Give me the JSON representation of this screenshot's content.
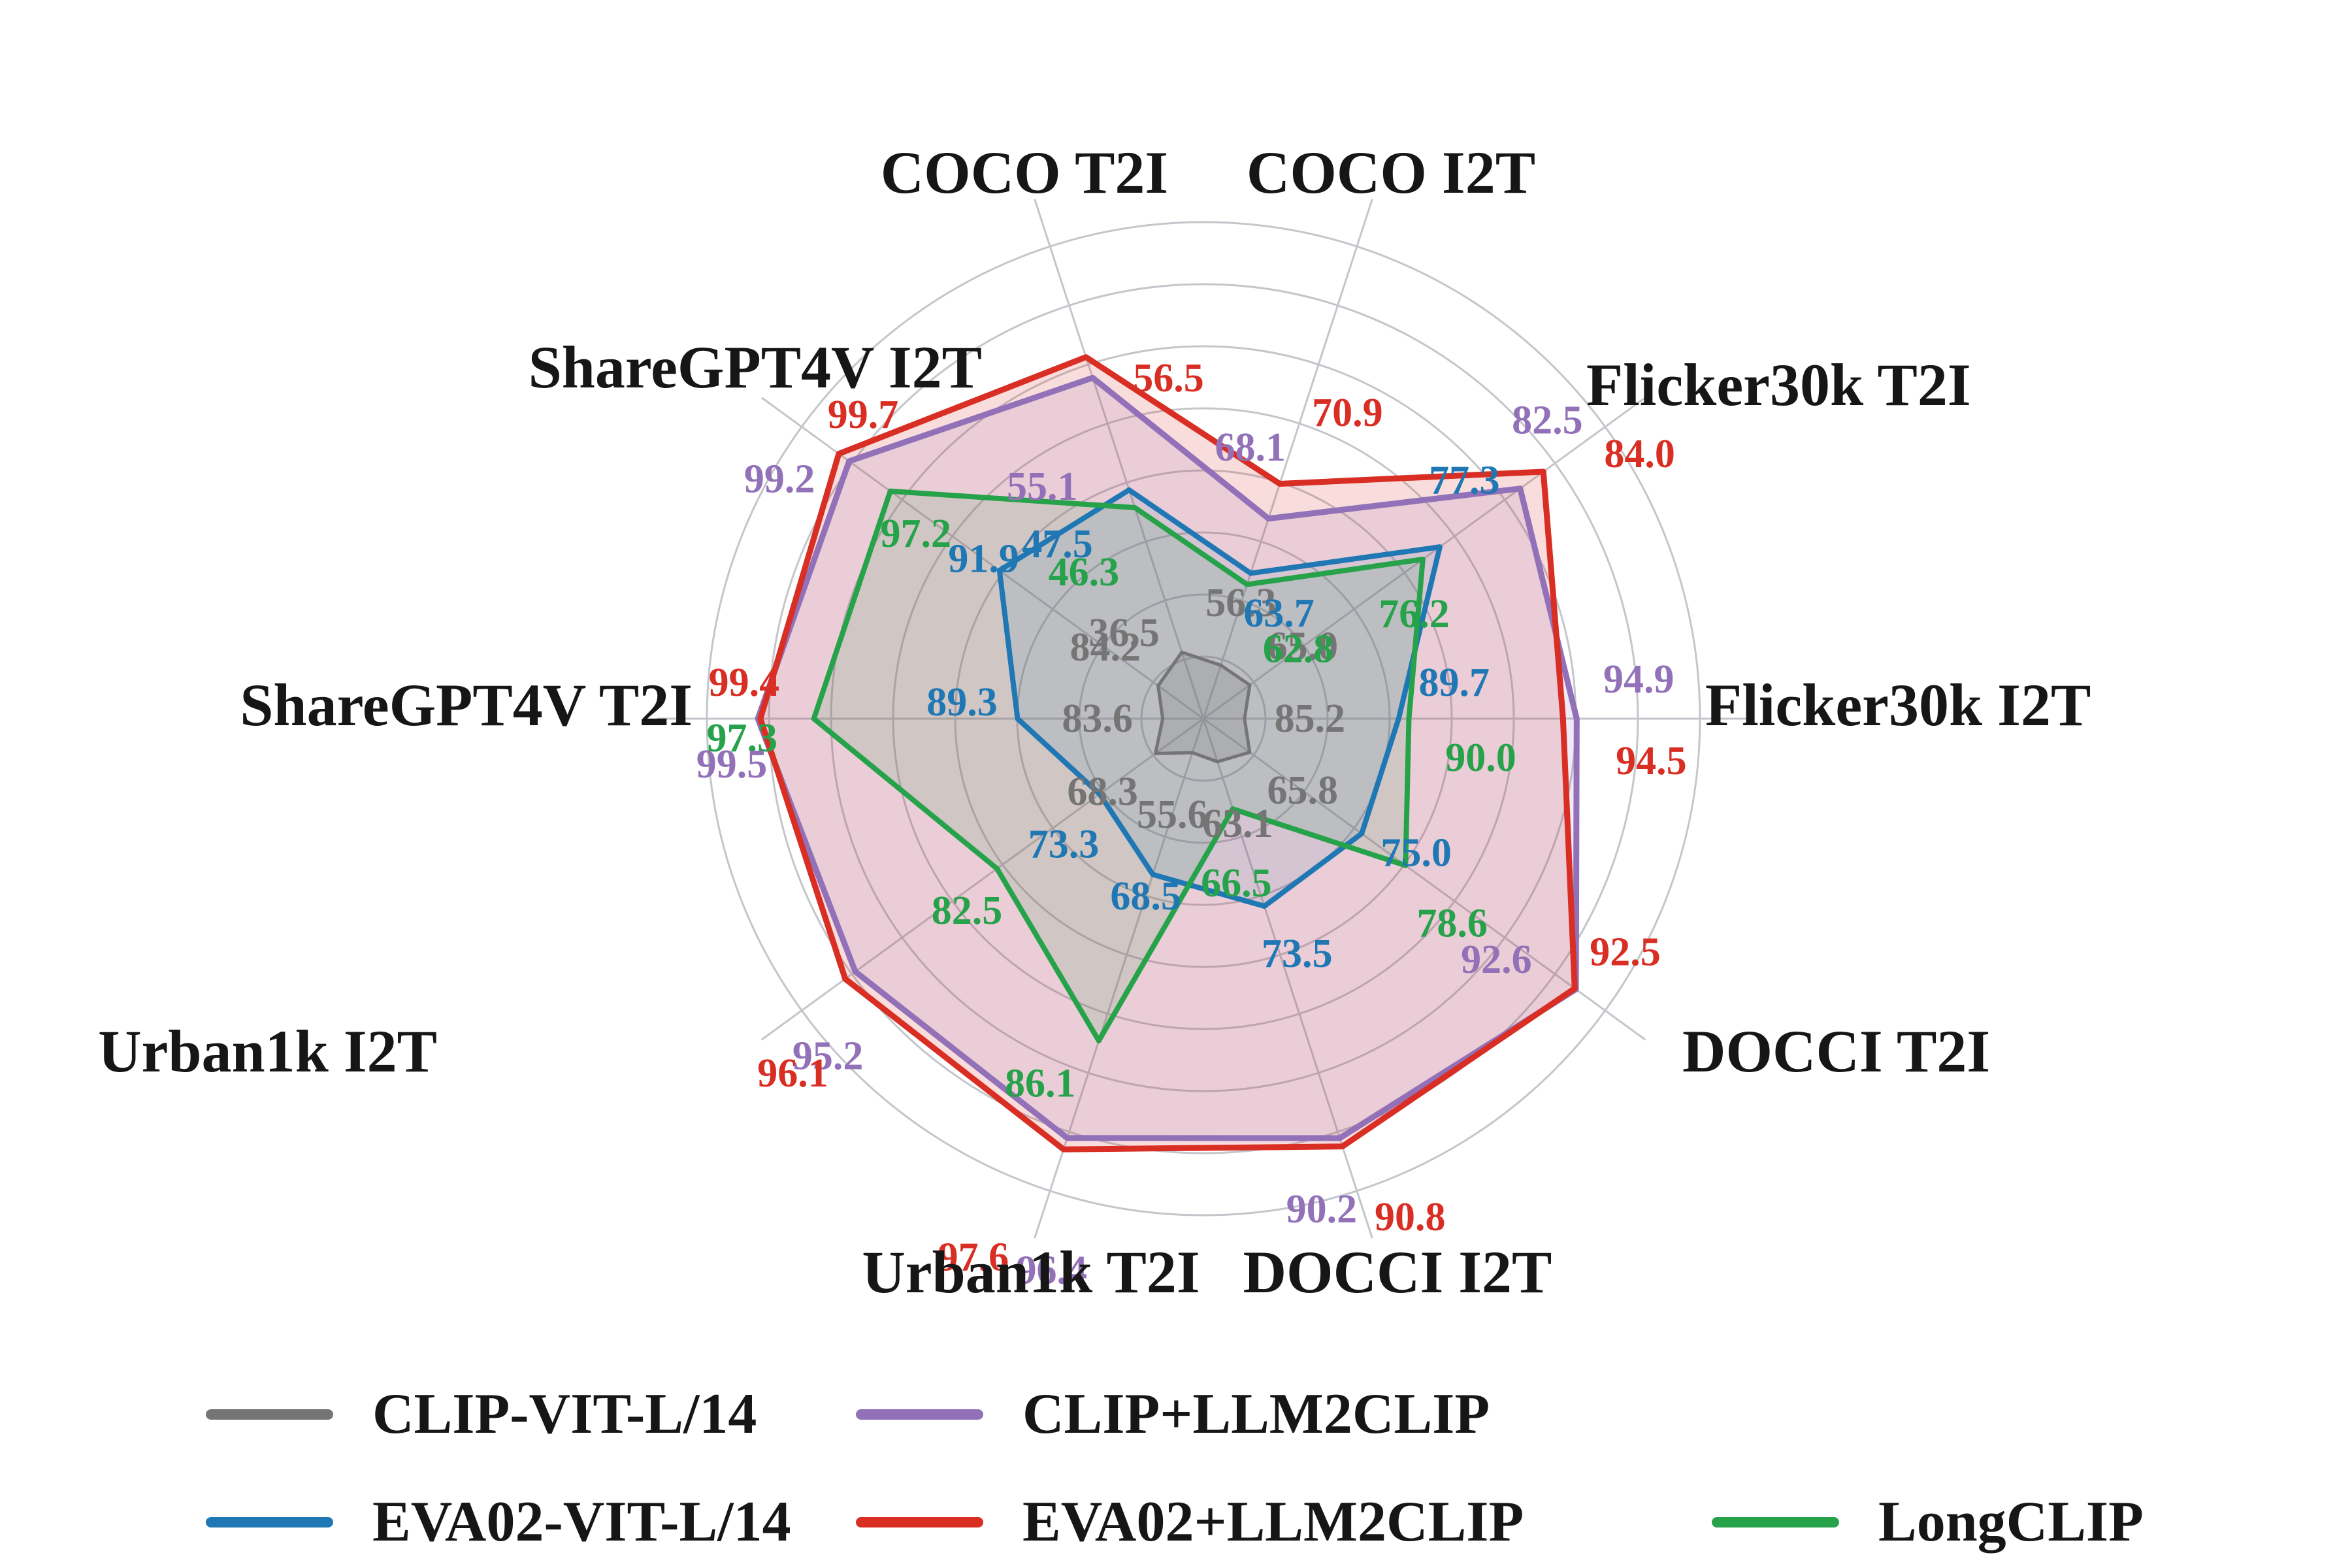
{
  "chart_data": {
    "type": "radar",
    "title": "",
    "grid": true,
    "grid_rings": 8,
    "grid_color": "#c3c6cb",
    "legend_position": "bottom",
    "axes": [
      {
        "label": "COCO T2I",
        "min": 32,
        "max": 64
      },
      {
        "label": "COCO I2T",
        "min": 52,
        "max": 90
      },
      {
        "label": "Flicker30k T2I",
        "min": 62,
        "max": 88
      },
      {
        "label": "Flicker30k I2T",
        "min": 84,
        "max": 98.5
      },
      {
        "label": "DOCCI T2I",
        "min": 62,
        "max": 95
      },
      {
        "label": "DOCCI I2T",
        "min": 60,
        "max": 94
      },
      {
        "label": "Urban1k T2I",
        "min": 52,
        "max": 102
      },
      {
        "label": "Urban1k I2T",
        "min": 64,
        "max": 100
      },
      {
        "label": "ShareGPT4V T2I",
        "min": 82,
        "max": 101.5
      },
      {
        "label": "ShareGPT4V I2T",
        "min": 82,
        "max": 101.5
      }
    ],
    "series": [
      {
        "name": "CLIP-VIT-L/14",
        "color": "#757575",
        "values": [
          36.5,
          56.3,
          65.0,
          85.2,
          65.8,
          63.1,
          55.6,
          68.3,
          83.6,
          84.2
        ]
      },
      {
        "name": "EVA02-VIT-L/14",
        "color": "#1f77b4",
        "values": [
          47.5,
          63.7,
          77.3,
          89.7,
          75.0,
          73.5,
          68.5,
          73.3,
          89.3,
          91.9
        ]
      },
      {
        "name": "CLIP+LLM2CLIP",
        "color": "#9271b8",
        "values": [
          55.1,
          68.1,
          82.5,
          94.9,
          92.6,
          90.2,
          96.4,
          95.2,
          99.5,
          99.2
        ]
      },
      {
        "name": "EVA02+LLM2CLIP",
        "color": "#d92e24",
        "values": [
          56.5,
          70.9,
          84.0,
          94.5,
          92.5,
          90.8,
          97.6,
          96.1,
          99.4,
          99.7
        ]
      },
      {
        "name": "LongCLIP",
        "color": "#26a24a",
        "values": [
          46.3,
          62.8,
          76.2,
          90.0,
          78.6,
          66.5,
          86.1,
          82.5,
          97.3,
          97.2
        ]
      }
    ]
  }
}
